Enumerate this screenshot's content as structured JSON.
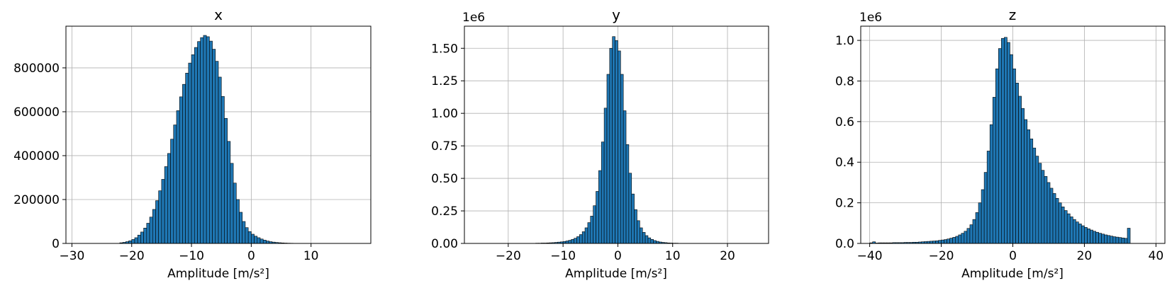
{
  "chart_data": [
    {
      "type": "bar",
      "title": "x",
      "xlabel": "Amplitude [m/s²]",
      "ylabel": "",
      "offset_label": "",
      "grid": true,
      "bar_color": "#1f77b4",
      "edge_color": "#000000",
      "xlim": [
        -31,
        20
      ],
      "ylim": [
        0,
        990000
      ],
      "xticks": [
        -30,
        -20,
        -10,
        0,
        10
      ],
      "xtick_labels": [
        "−30",
        "−20",
        "−10",
        "0",
        "10"
      ],
      "yticks": [
        0,
        200000,
        400000,
        600000,
        800000
      ],
      "ytick_labels": [
        "0",
        "200000",
        "400000",
        "600000",
        "800000"
      ],
      "bin_start": -22.0,
      "bin_width": 0.5,
      "values": [
        3000,
        5000,
        8000,
        12000,
        18000,
        26000,
        38000,
        52000,
        70000,
        92000,
        120000,
        155000,
        195000,
        240000,
        292000,
        350000,
        410000,
        475000,
        540000,
        605000,
        668000,
        725000,
        776000,
        822000,
        860000,
        893000,
        920000,
        938000,
        948000,
        942000,
        922000,
        885000,
        830000,
        758000,
        670000,
        570000,
        465000,
        365000,
        275000,
        200000,
        142000,
        100000,
        72000,
        54000,
        42000,
        33000,
        26000,
        20000,
        15000,
        11000,
        8000,
        6000,
        4500,
        3300,
        2400,
        1700,
        1200,
        900,
        650
      ]
    },
    {
      "type": "bar",
      "title": "y",
      "xlabel": "Amplitude [m/s²]",
      "ylabel": "",
      "offset_label": "1e6",
      "grid": true,
      "bar_color": "#1f77b4",
      "edge_color": "#000000",
      "xlim": [
        -28,
        27.5
      ],
      "ylim": [
        0,
        1.67
      ],
      "xticks": [
        -20,
        -10,
        0,
        10,
        20
      ],
      "xtick_labels": [
        "−20",
        "−10",
        "0",
        "10",
        "20"
      ],
      "yticks": [
        0,
        0.25,
        0.5,
        0.75,
        1.0,
        1.25,
        1.5
      ],
      "ytick_labels": [
        "0.00",
        "0.25",
        "0.50",
        "0.75",
        "1.00",
        "1.25",
        "1.50"
      ],
      "bin_start": -15.0,
      "bin_width": 0.5,
      "values": [
        0.002,
        0.002,
        0.003,
        0.003,
        0.004,
        0.005,
        0.006,
        0.008,
        0.01,
        0.012,
        0.015,
        0.019,
        0.024,
        0.031,
        0.04,
        0.052,
        0.068,
        0.09,
        0.12,
        0.16,
        0.21,
        0.29,
        0.4,
        0.56,
        0.78,
        1.04,
        1.3,
        1.5,
        1.59,
        1.56,
        1.48,
        1.3,
        1.02,
        0.76,
        0.54,
        0.38,
        0.26,
        0.175,
        0.12,
        0.085,
        0.06,
        0.043,
        0.031,
        0.022,
        0.016,
        0.011,
        0.008,
        0.006,
        0.004,
        0.003,
        0.002,
        0.002,
        0.001,
        0.001,
        0.001,
        0.001,
        0.001
      ]
    },
    {
      "type": "bar",
      "title": "z",
      "xlabel": "Amplitude [m/s²]",
      "ylabel": "",
      "offset_label": "1e6",
      "grid": true,
      "bar_color": "#1f77b4",
      "edge_color": "#000000",
      "xlim": [
        -42.5,
        42.5
      ],
      "ylim": [
        0,
        1.07
      ],
      "xticks": [
        -40,
        -20,
        0,
        20,
        40
      ],
      "xtick_labels": [
        "−40",
        "−20",
        "0",
        "20",
        "40"
      ],
      "yticks": [
        0,
        0.2,
        0.4,
        0.6,
        0.8,
        1.0
      ],
      "ytick_labels": [
        "0.0",
        "0.2",
        "0.4",
        "0.6",
        "0.8",
        "1.0"
      ],
      "bin_start": -40.0,
      "bin_width": 0.8,
      "values": [
        0.003,
        0.008,
        0.002,
        0.003,
        0.003,
        0.003,
        0.003,
        0.003,
        0.004,
        0.004,
        0.004,
        0.004,
        0.005,
        0.005,
        0.005,
        0.006,
        0.006,
        0.007,
        0.008,
        0.009,
        0.01,
        0.011,
        0.012,
        0.013,
        0.015,
        0.017,
        0.019,
        0.022,
        0.026,
        0.03,
        0.035,
        0.042,
        0.05,
        0.06,
        0.074,
        0.092,
        0.118,
        0.152,
        0.2,
        0.265,
        0.35,
        0.455,
        0.585,
        0.72,
        0.86,
        0.96,
        1.01,
        1.015,
        0.99,
        0.93,
        0.86,
        0.79,
        0.725,
        0.665,
        0.61,
        0.56,
        0.515,
        0.47,
        0.43,
        0.395,
        0.36,
        0.33,
        0.3,
        0.272,
        0.246,
        0.222,
        0.2,
        0.18,
        0.162,
        0.146,
        0.131,
        0.118,
        0.106,
        0.096,
        0.087,
        0.079,
        0.072,
        0.066,
        0.06,
        0.055,
        0.05,
        0.046,
        0.042,
        0.039,
        0.036,
        0.033,
        0.031,
        0.029,
        0.027,
        0.025,
        0.075
      ]
    }
  ]
}
